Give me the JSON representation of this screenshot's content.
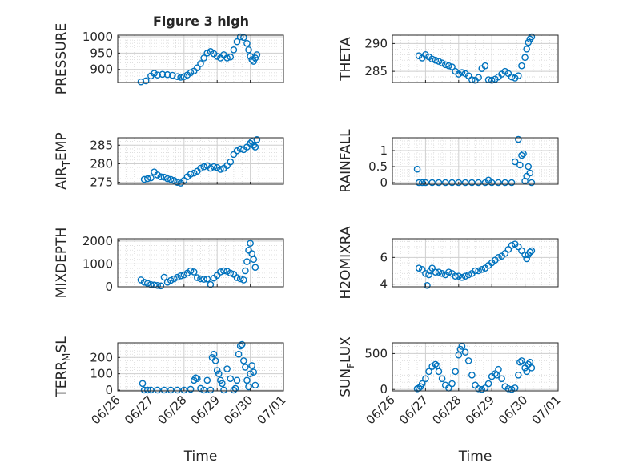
{
  "figure": {
    "title": "Figure 3 high",
    "x_ticks": [
      "06/26",
      "06/27",
      "06/28",
      "06/29",
      "06/30",
      "07/01"
    ],
    "x_label": "Time",
    "marker_color": "#0072BD"
  },
  "chart_data": [
    {
      "type": "scatter",
      "ylabel": "PRESSURE",
      "yticks": [
        900,
        950,
        1000
      ],
      "ylim": [
        860,
        1005
      ],
      "title": "Figure 3 high",
      "x": [
        0.7,
        0.85,
        1.0,
        1.1,
        1.2,
        1.35,
        1.5,
        1.65,
        1.8,
        1.9,
        2.0,
        2.1,
        2.2,
        2.3,
        2.4,
        2.5,
        2.6,
        2.7,
        2.8,
        2.9,
        3.0,
        3.1,
        3.2,
        3.3,
        3.4,
        3.5,
        3.6,
        3.7,
        3.8,
        3.9,
        3.95,
        4.0,
        4.05,
        4.1,
        4.15,
        4.2
      ],
      "y": [
        862,
        865,
        880,
        888,
        883,
        885,
        884,
        882,
        878,
        876,
        878,
        883,
        890,
        895,
        905,
        918,
        935,
        950,
        955,
        948,
        940,
        935,
        945,
        935,
        938,
        960,
        985,
        1000,
        998,
        980,
        960,
        940,
        930,
        925,
        935,
        945
      ]
    },
    {
      "type": "scatter",
      "ylabel": "THETA",
      "yticks": [
        285,
        290
      ],
      "ylim": [
        283,
        291.5
      ],
      "x": [
        0.8,
        0.9,
        1.0,
        1.1,
        1.2,
        1.3,
        1.4,
        1.5,
        1.6,
        1.7,
        1.8,
        1.9,
        2.0,
        2.1,
        2.2,
        2.3,
        2.4,
        2.5,
        2.6,
        2.7,
        2.8,
        2.9,
        3.0,
        3.1,
        3.2,
        3.3,
        3.4,
        3.5,
        3.6,
        3.7,
        3.8,
        3.9,
        4.0,
        4.05,
        4.1,
        4.15,
        4.2
      ],
      "y": [
        287.8,
        287.4,
        288.0,
        287.6,
        287.2,
        287.0,
        286.8,
        286.5,
        286.2,
        286.0,
        285.8,
        285.0,
        284.5,
        284.8,
        284.6,
        284.2,
        283.5,
        283.4,
        283.9,
        285.5,
        286.0,
        283.5,
        283.4,
        283.6,
        284.0,
        284.5,
        285.0,
        284.6,
        284.0,
        283.8,
        284.2,
        286.0,
        287.5,
        289.0,
        290.2,
        290.8,
        291.2
      ]
    },
    {
      "type": "scatter",
      "ylabel": "AIR_TEMP",
      "yticks": [
        275,
        280,
        285
      ],
      "ylim": [
        274.5,
        287
      ],
      "x": [
        0.8,
        0.9,
        1.0,
        1.1,
        1.2,
        1.3,
        1.4,
        1.5,
        1.6,
        1.7,
        1.8,
        1.9,
        2.0,
        2.1,
        2.2,
        2.3,
        2.4,
        2.5,
        2.6,
        2.7,
        2.8,
        2.9,
        3.0,
        3.1,
        3.2,
        3.3,
        3.4,
        3.5,
        3.6,
        3.7,
        3.8,
        3.9,
        4.0,
        4.05,
        4.1,
        4.15,
        4.2
      ],
      "y": [
        275.8,
        276.0,
        276.2,
        277.8,
        277.0,
        276.5,
        276.4,
        276.0,
        275.8,
        275.5,
        275.0,
        274.8,
        275.5,
        276.5,
        277.2,
        277.5,
        278.0,
        278.8,
        279.2,
        279.5,
        278.8,
        279.2,
        279.0,
        278.5,
        278.8,
        279.5,
        280.5,
        282.5,
        283.5,
        284.0,
        283.8,
        284.5,
        285.5,
        286.0,
        285.0,
        284.5,
        286.5
      ]
    },
    {
      "type": "scatter",
      "ylabel": "RAINFALL",
      "yticks": [
        0,
        0.5,
        1
      ],
      "yticklabels": [
        "0",
        "0.5",
        "1"
      ],
      "ylim": [
        -0.05,
        1.4
      ],
      "x": [
        0.75,
        0.8,
        0.9,
        1.0,
        1.2,
        1.4,
        1.6,
        1.8,
        2.0,
        2.2,
        2.4,
        2.6,
        2.8,
        2.9,
        3.0,
        3.2,
        3.4,
        3.6,
        3.7,
        3.8,
        3.85,
        3.9,
        3.95,
        4.0,
        4.05,
        4.1,
        4.15,
        4.2
      ],
      "y": [
        0.42,
        0,
        0,
        0,
        0,
        0,
        0,
        0,
        0,
        0,
        0,
        0,
        0,
        0.08,
        0,
        0,
        0,
        0,
        0.65,
        1.35,
        0.55,
        0.85,
        0.9,
        0.05,
        0.2,
        0.5,
        0.3,
        0
      ]
    },
    {
      "type": "scatter",
      "ylabel": "MIXDEPTH",
      "yticks": [
        0,
        1000,
        2000
      ],
      "ylim": [
        0,
        2100
      ],
      "x": [
        0.7,
        0.8,
        0.9,
        1.0,
        1.1,
        1.2,
        1.3,
        1.4,
        1.5,
        1.6,
        1.7,
        1.8,
        1.9,
        2.0,
        2.1,
        2.2,
        2.3,
        2.4,
        2.5,
        2.6,
        2.7,
        2.8,
        2.9,
        3.0,
        3.1,
        3.2,
        3.3,
        3.4,
        3.5,
        3.6,
        3.7,
        3.8,
        3.85,
        3.9,
        3.95,
        4.0,
        4.05,
        4.1,
        4.15
      ],
      "y": [
        300,
        200,
        150,
        100,
        80,
        60,
        40,
        420,
        200,
        280,
        350,
        420,
        480,
        520,
        600,
        700,
        650,
        400,
        350,
        330,
        340,
        100,
        380,
        500,
        650,
        700,
        680,
        600,
        550,
        400,
        350,
        300,
        700,
        1100,
        1600,
        1900,
        1450,
        1200,
        850
      ]
    },
    {
      "type": "scatter",
      "ylabel": "H2OMIXRA",
      "yticks": [
        4,
        6
      ],
      "ylim": [
        3.8,
        7.4
      ],
      "x": [
        0.8,
        0.9,
        1.0,
        1.05,
        1.1,
        1.15,
        1.2,
        1.3,
        1.4,
        1.5,
        1.6,
        1.7,
        1.8,
        1.9,
        2.0,
        2.1,
        2.2,
        2.3,
        2.4,
        2.5,
        2.6,
        2.7,
        2.8,
        2.9,
        3.0,
        3.1,
        3.2,
        3.3,
        3.4,
        3.5,
        3.6,
        3.7,
        3.8,
        3.9,
        4.0,
        4.05,
        4.1,
        4.15,
        4.2
      ],
      "y": [
        5.2,
        5.1,
        4.8,
        3.9,
        4.7,
        5.0,
        5.2,
        4.9,
        4.9,
        4.8,
        4.7,
        4.9,
        4.8,
        4.6,
        4.6,
        4.5,
        4.6,
        4.7,
        4.8,
        5.0,
        5.0,
        5.1,
        5.2,
        5.4,
        5.6,
        5.8,
        6.0,
        6.1,
        6.3,
        6.6,
        6.9,
        7.0,
        6.8,
        6.5,
        6.2,
        5.9,
        6.2,
        6.4,
        6.5
      ]
    },
    {
      "type": "scatter",
      "ylabel": "TERR_MSL",
      "yticks": [
        0,
        100,
        200
      ],
      "ylim": [
        -5,
        290
      ],
      "x": [
        0.75,
        0.8,
        0.9,
        1.0,
        1.2,
        1.4,
        1.6,
        1.8,
        2.0,
        2.2,
        2.3,
        2.35,
        2.4,
        2.5,
        2.6,
        2.7,
        2.8,
        2.85,
        2.9,
        2.95,
        3.0,
        3.05,
        3.1,
        3.15,
        3.2,
        3.3,
        3.4,
        3.5,
        3.55,
        3.6,
        3.65,
        3.7,
        3.75,
        3.8,
        3.85,
        3.9,
        3.95,
        4.0,
        4.05,
        4.1,
        4.15
      ],
      "y": [
        40,
        0,
        0,
        0,
        0,
        0,
        0,
        0,
        0,
        5,
        60,
        75,
        70,
        10,
        0,
        60,
        0,
        200,
        220,
        180,
        120,
        100,
        60,
        40,
        0,
        130,
        70,
        0,
        10,
        60,
        220,
        270,
        280,
        180,
        140,
        60,
        20,
        100,
        150,
        110,
        30
      ]
    },
    {
      "type": "scatter",
      "ylabel": "SUN_FLUX",
      "yticks": [
        0,
        500
      ],
      "ylim": [
        -20,
        650
      ],
      "x": [
        0.75,
        0.8,
        0.85,
        0.9,
        1.0,
        1.1,
        1.2,
        1.3,
        1.35,
        1.4,
        1.5,
        1.6,
        1.7,
        1.8,
        1.9,
        2.0,
        2.05,
        2.1,
        2.2,
        2.3,
        2.4,
        2.5,
        2.6,
        2.7,
        2.8,
        2.9,
        3.0,
        3.1,
        3.15,
        3.2,
        3.3,
        3.4,
        3.5,
        3.6,
        3.7,
        3.8,
        3.85,
        3.9,
        4.0,
        4.05,
        4.1,
        4.15,
        4.2
      ],
      "y": [
        10,
        20,
        40,
        80,
        150,
        250,
        320,
        350,
        330,
        250,
        150,
        60,
        20,
        80,
        250,
        480,
        560,
        600,
        520,
        400,
        200,
        60,
        10,
        0,
        20,
        80,
        180,
        220,
        200,
        280,
        150,
        40,
        10,
        0,
        20,
        200,
        380,
        400,
        300,
        250,
        350,
        380,
        300
      ]
    }
  ]
}
